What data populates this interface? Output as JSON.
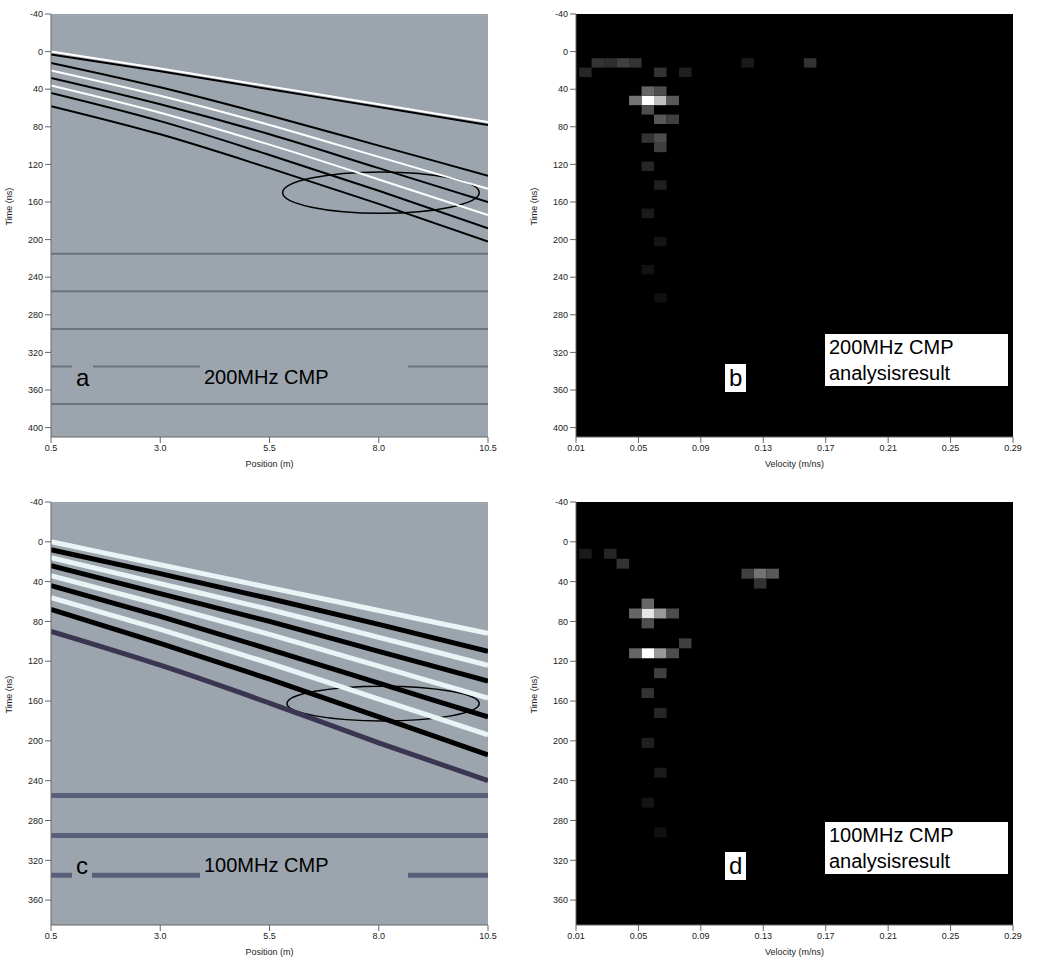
{
  "chart_data": [
    {
      "type": "line",
      "panel_label": "a",
      "title": "200MHz CMP",
      "x_label": "Position (m)",
      "y_label": "Time (ns)",
      "xlim": [
        0.5,
        10.5
      ],
      "xticks": [
        0.5,
        {
          "value": 3.0,
          "label": "3.0"
        },
        5.5,
        {
          "value": 8.0,
          "label": "8.0"
        },
        10.5
      ],
      "ylim": [
        -40,
        410
      ],
      "yticks": [
        -40,
        0,
        40,
        80,
        120,
        160,
        200,
        240,
        280,
        320,
        360,
        400
      ],
      "grid": false,
      "x": [
        0.5,
        3.0,
        5.5,
        8.0,
        10.5
      ],
      "series": [
        {
          "color": "#ffffff",
          "values": [
            0,
            18,
            37,
            56,
            75
          ]
        },
        {
          "color": "#000000",
          "values": [
            3,
            21,
            40,
            59,
            78
          ]
        },
        {
          "color": "#000000",
          "values": [
            12,
            38,
            68,
            100,
            132
          ]
        },
        {
          "color": "#ffffff",
          "values": [
            20,
            47,
            78,
            112,
            146
          ]
        },
        {
          "color": "#000000",
          "values": [
            28,
            56,
            88,
            124,
            160
          ]
        },
        {
          "color": "#ffffff",
          "values": [
            36,
            65,
            99,
            136,
            174
          ]
        },
        {
          "color": "#000000",
          "values": [
            44,
            74,
            110,
            148,
            188
          ]
        },
        {
          "color": "#000000",
          "values": [
            58,
            88,
            124,
            162,
            202
          ]
        },
        {
          "color": "#6b7580",
          "values": [
            215,
            215,
            215,
            215,
            215
          ]
        },
        {
          "color": "#6b7580",
          "values": [
            255,
            255,
            255,
            255,
            255
          ]
        },
        {
          "color": "#6b7580",
          "values": [
            295,
            295,
            295,
            295,
            295
          ]
        },
        {
          "color": "#6b7580",
          "values": [
            335,
            335,
            335,
            335,
            335
          ]
        },
        {
          "color": "#6b7580",
          "values": [
            375,
            375,
            375,
            375,
            375
          ]
        }
      ],
      "ellipse": {
        "x": [
          5.8,
          10.3
        ],
        "y": [
          128,
          172
        ]
      }
    },
    {
      "type": "heatmap",
      "panel_label": "b",
      "title": "200MHz CMP analysisresult",
      "x_label": "Velocity (m/ns)",
      "y_label": "Time (ns)",
      "xlim": [
        0.01,
        0.29
      ],
      "xticks": [
        0.01,
        0.05,
        0.09,
        0.13,
        0.17,
        0.21,
        0.25,
        0.29
      ],
      "ylim": [
        -40,
        410
      ],
      "yticks": [
        -40,
        0,
        40,
        80,
        120,
        160,
        200,
        240,
        280,
        320,
        360,
        400
      ],
      "cell_width": 0.008,
      "cell_height": 10,
      "intensity_range": [
        0,
        1
      ],
      "cells": [
        [
          0.056,
          52,
          1.0
        ],
        [
          0.064,
          52,
          0.75
        ],
        [
          0.048,
          52,
          0.45
        ],
        [
          0.072,
          52,
          0.35
        ],
        [
          0.056,
          42,
          0.4
        ],
        [
          0.064,
          42,
          0.3
        ],
        [
          0.056,
          62,
          0.3
        ],
        [
          0.064,
          72,
          0.35
        ],
        [
          0.072,
          72,
          0.25
        ],
        [
          0.064,
          92,
          0.3
        ],
        [
          0.056,
          92,
          0.2
        ],
        [
          0.064,
          102,
          0.25
        ],
        [
          0.056,
          122,
          0.15
        ],
        [
          0.064,
          142,
          0.12
        ],
        [
          0.056,
          172,
          0.1
        ],
        [
          0.064,
          202,
          0.08
        ],
        [
          0.056,
          232,
          0.07
        ],
        [
          0.064,
          262,
          0.06
        ],
        [
          0.024,
          12,
          0.2
        ],
        [
          0.032,
          12,
          0.18
        ],
        [
          0.04,
          12,
          0.25
        ],
        [
          0.048,
          12,
          0.2
        ],
        [
          0.016,
          22,
          0.15
        ],
        [
          0.16,
          12,
          0.2
        ],
        [
          0.12,
          12,
          0.1
        ],
        [
          0.08,
          22,
          0.12
        ],
        [
          0.064,
          22,
          0.2
        ]
      ]
    },
    {
      "type": "line",
      "panel_label": "c",
      "title": "100MHz CMP",
      "x_label": "Position (m)",
      "y_label": "Time (ns)",
      "xlim": [
        0.5,
        10.5
      ],
      "xticks": [
        0.5,
        {
          "value": 3.0,
          "label": "3.0"
        },
        5.5,
        {
          "value": 8.0,
          "label": "8.0"
        },
        10.5
      ],
      "ylim": [
        -40,
        385
      ],
      "yticks": [
        -40,
        0,
        40,
        80,
        120,
        160,
        200,
        240,
        280,
        320,
        360
      ],
      "grid": false,
      "x": [
        0.5,
        3.0,
        5.5,
        8.0,
        10.5
      ],
      "series": [
        {
          "color": "#e8f4f6",
          "values": [
            0,
            23,
            46,
            69,
            92
          ]
        },
        {
          "color": "#000000",
          "values": [
            8,
            32,
            57,
            83,
            110
          ]
        },
        {
          "color": "#e8f4f6",
          "values": [
            16,
            42,
            68,
            96,
            124
          ]
        },
        {
          "color": "#000000",
          "values": [
            24,
            52,
            80,
            110,
            140
          ]
        },
        {
          "color": "#e8f4f6",
          "values": [
            34,
            63,
            93,
            125,
            157
          ]
        },
        {
          "color": "#000000",
          "values": [
            44,
            75,
            108,
            142,
            176
          ]
        },
        {
          "color": "#e8f4f6",
          "values": [
            56,
            88,
            122,
            158,
            194
          ]
        },
        {
          "color": "#000000",
          "values": [
            68,
            102,
            138,
            176,
            214
          ]
        },
        {
          "color": "#3a3550",
          "values": [
            90,
            124,
            162,
            202,
            240
          ]
        },
        {
          "color": "#5a5f7a",
          "values": [
            255,
            255,
            255,
            255,
            255
          ]
        },
        {
          "color": "#5a5f7a",
          "values": [
            295,
            295,
            295,
            295,
            295
          ]
        },
        {
          "color": "#5a5f7a",
          "values": [
            335,
            335,
            335,
            335,
            335
          ]
        }
      ],
      "ellipse": {
        "x": [
          5.9,
          10.3
        ],
        "y": [
          145,
          180
        ]
      }
    },
    {
      "type": "heatmap",
      "panel_label": "d",
      "title": "100MHz CMP analysisresult",
      "x_label": "Velocity (m/ns)",
      "y_label": "Time (ns)",
      "xlim": [
        0.01,
        0.29
      ],
      "xticks": [
        0.01,
        0.05,
        0.09,
        0.13,
        0.17,
        0.21,
        0.25,
        0.29
      ],
      "ylim": [
        -40,
        385
      ],
      "yticks": [
        -40,
        0,
        40,
        80,
        120,
        160,
        200,
        240,
        280,
        320,
        360
      ],
      "cell_width": 0.008,
      "cell_height": 10,
      "intensity_range": [
        0,
        1
      ],
      "cells": [
        [
          0.056,
          72,
          0.9
        ],
        [
          0.064,
          72,
          0.6
        ],
        [
          0.048,
          72,
          0.4
        ],
        [
          0.056,
          62,
          0.4
        ],
        [
          0.072,
          72,
          0.3
        ],
        [
          0.056,
          112,
          1.0
        ],
        [
          0.064,
          112,
          0.6
        ],
        [
          0.048,
          112,
          0.4
        ],
        [
          0.072,
          112,
          0.3
        ],
        [
          0.08,
          102,
          0.25
        ],
        [
          0.056,
          82,
          0.3
        ],
        [
          0.064,
          132,
          0.25
        ],
        [
          0.056,
          152,
          0.2
        ],
        [
          0.064,
          172,
          0.15
        ],
        [
          0.056,
          202,
          0.12
        ],
        [
          0.064,
          232,
          0.1
        ],
        [
          0.056,
          262,
          0.08
        ],
        [
          0.064,
          292,
          0.06
        ],
        [
          0.128,
          32,
          0.45
        ],
        [
          0.136,
          32,
          0.35
        ],
        [
          0.12,
          32,
          0.25
        ],
        [
          0.128,
          42,
          0.2
        ],
        [
          0.032,
          12,
          0.15
        ],
        [
          0.04,
          22,
          0.2
        ],
        [
          0.016,
          12,
          0.1
        ]
      ]
    }
  ]
}
